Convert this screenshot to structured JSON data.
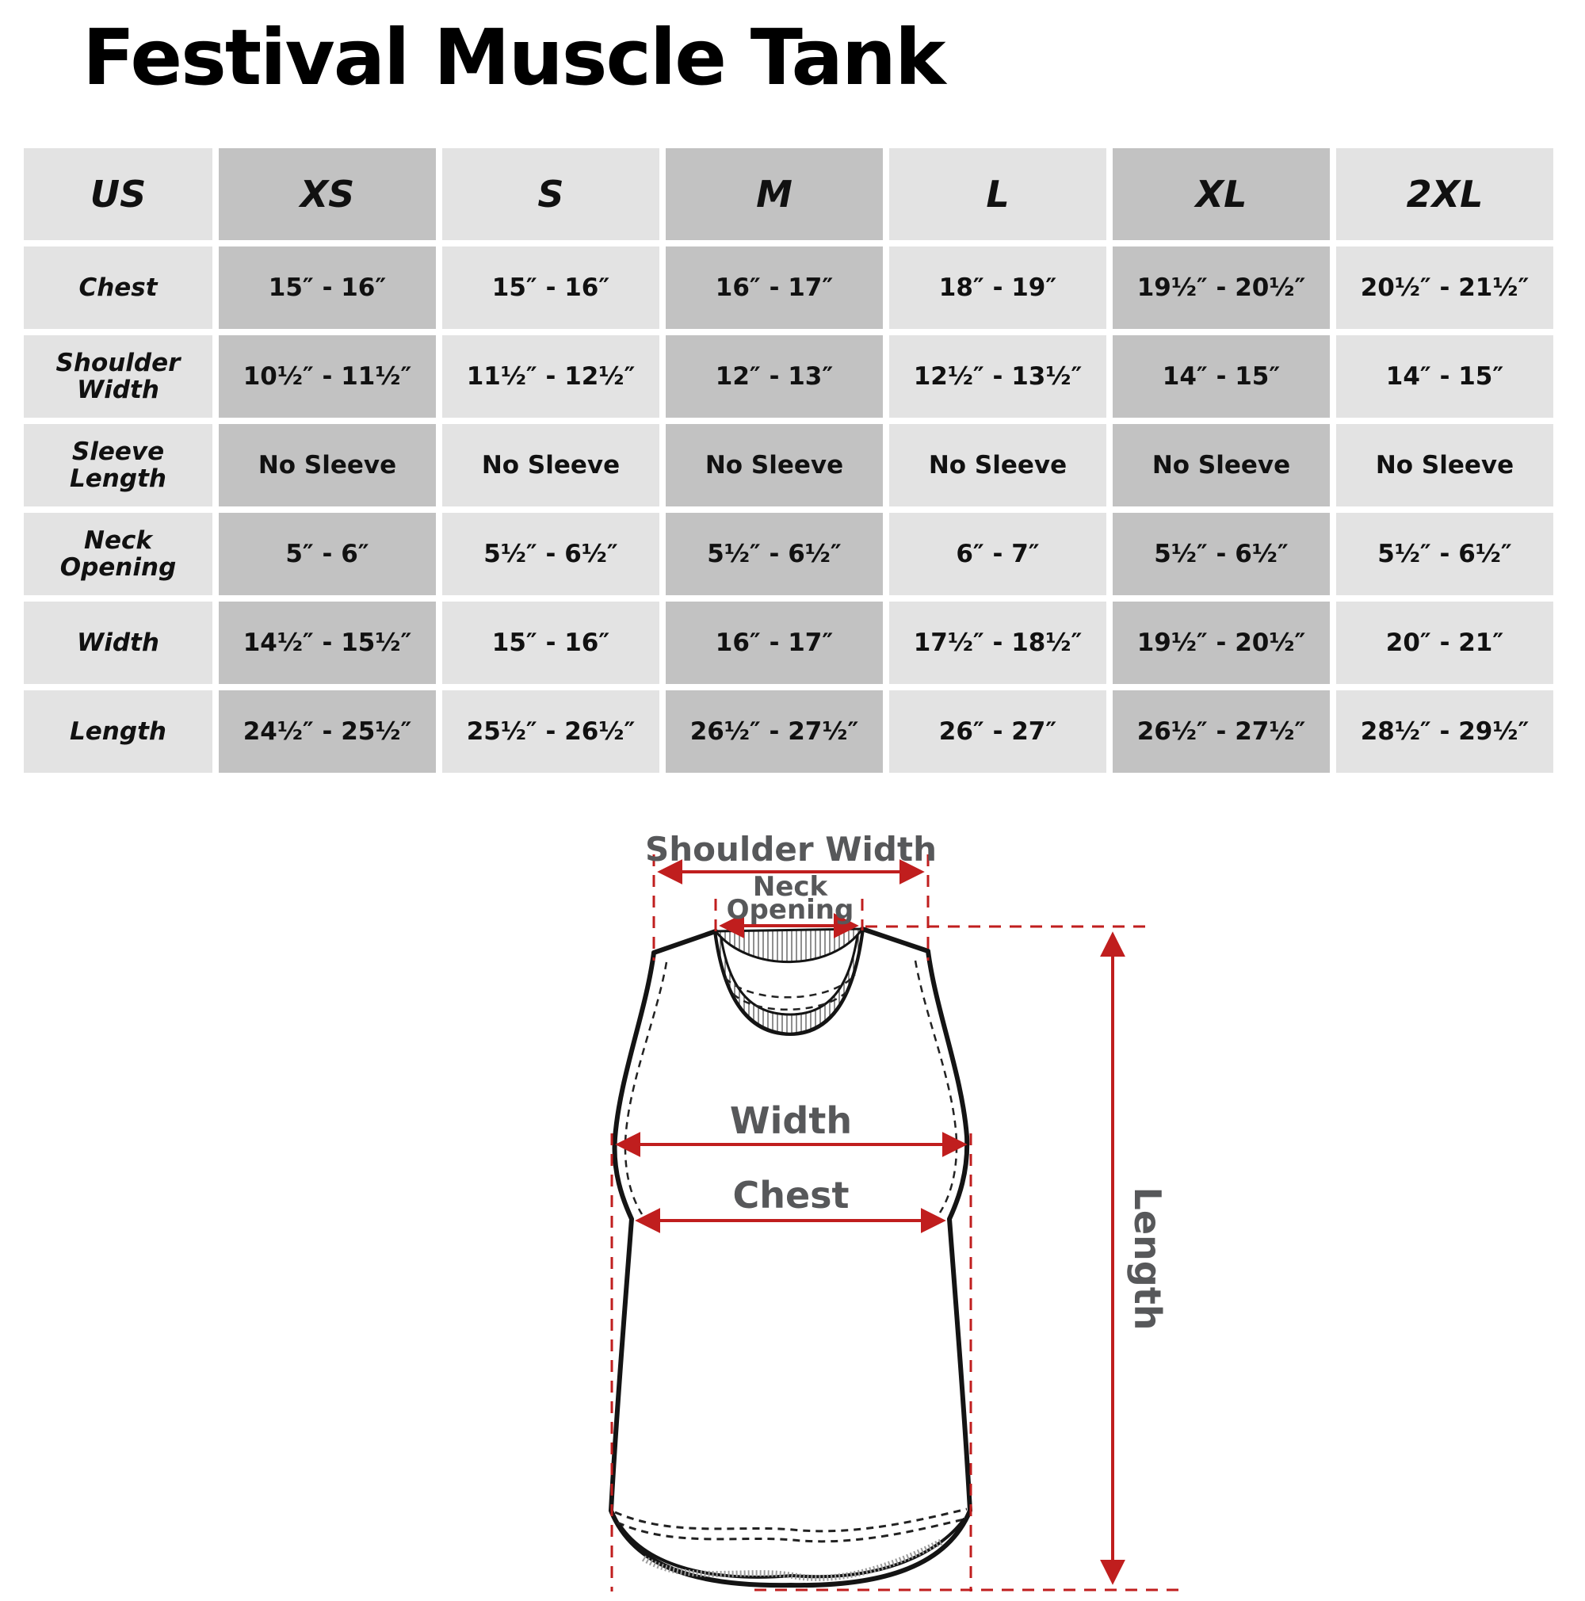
{
  "title": "Festival Muscle Tank",
  "table": {
    "columns": [
      "US",
      "XS",
      "S",
      "M",
      "L",
      "XL",
      "2XL"
    ],
    "rows": [
      {
        "label": "Chest",
        "values": [
          "15″ - 16″",
          "15″ - 16″",
          "16″ - 17″",
          "18″ - 19″",
          "19½″ - 20½″",
          "20½″ - 21½″"
        ]
      },
      {
        "label": "Shoulder Width",
        "values": [
          "10½″ - 11½″",
          "11½″ - 12½″",
          "12″ - 13″",
          "12½″ - 13½″",
          "14″ - 15″",
          "14″ - 15″"
        ]
      },
      {
        "label": "Sleeve Length",
        "values": [
          "No Sleeve",
          "No Sleeve",
          "No Sleeve",
          "No Sleeve",
          "No Sleeve",
          "No Sleeve"
        ]
      },
      {
        "label": "Neck Opening",
        "values": [
          "5″ - 6″",
          "5½″ - 6½″",
          "5½″ - 6½″",
          "6″ - 7″",
          "5½″ - 6½″",
          "5½″ - 6½″"
        ]
      },
      {
        "label": "Width",
        "values": [
          "14½″ - 15½″",
          "15″ - 16″",
          "16″ - 17″",
          "17½″ - 18½″",
          "19½″ - 20½″",
          "20″ - 21″"
        ]
      },
      {
        "label": "Length",
        "values": [
          "24½″ - 25½″",
          "25½″ - 26½″",
          "26½″ - 27½″",
          "26″ - 27″",
          "26½″ - 27½″",
          "28½″ - 29½″"
        ]
      }
    ]
  },
  "diagram": {
    "labels": {
      "shoulder_width": "Shoulder Width",
      "neck_line1": "Neck",
      "neck_line2": "Opening",
      "width": "Width",
      "chest": "Chest",
      "length": "Length"
    }
  },
  "colors": {
    "cell_light": "#e3e3e3",
    "cell_dark": "#c2c2c2",
    "measure_red": "#c01e1e",
    "label_gray": "#57585a",
    "outline_black": "#141414"
  }
}
